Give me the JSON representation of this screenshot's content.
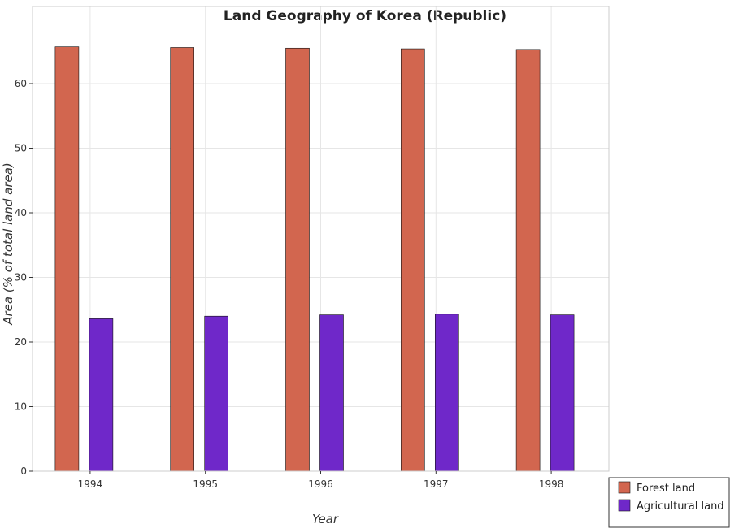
{
  "chart_data": {
    "type": "bar",
    "title": "Land Geography of Korea (Republic)",
    "xlabel": "Year",
    "ylabel": "Area (% of total land area)",
    "categories": [
      "1994",
      "1995",
      "1996",
      "1997",
      "1998"
    ],
    "ylim": [
      0,
      70
    ],
    "yticks": [
      0,
      10,
      20,
      30,
      40,
      50,
      60
    ],
    "grid": true,
    "legend_position": "bottom-right",
    "series": [
      {
        "name": "Forest land",
        "color": "#d2664f",
        "values": [
          65.7,
          65.6,
          65.5,
          65.4,
          65.3
        ]
      },
      {
        "name": "Agricultural land",
        "color": "#6f28c9",
        "values": [
          23.6,
          24.0,
          24.2,
          24.3,
          24.2
        ]
      }
    ]
  }
}
